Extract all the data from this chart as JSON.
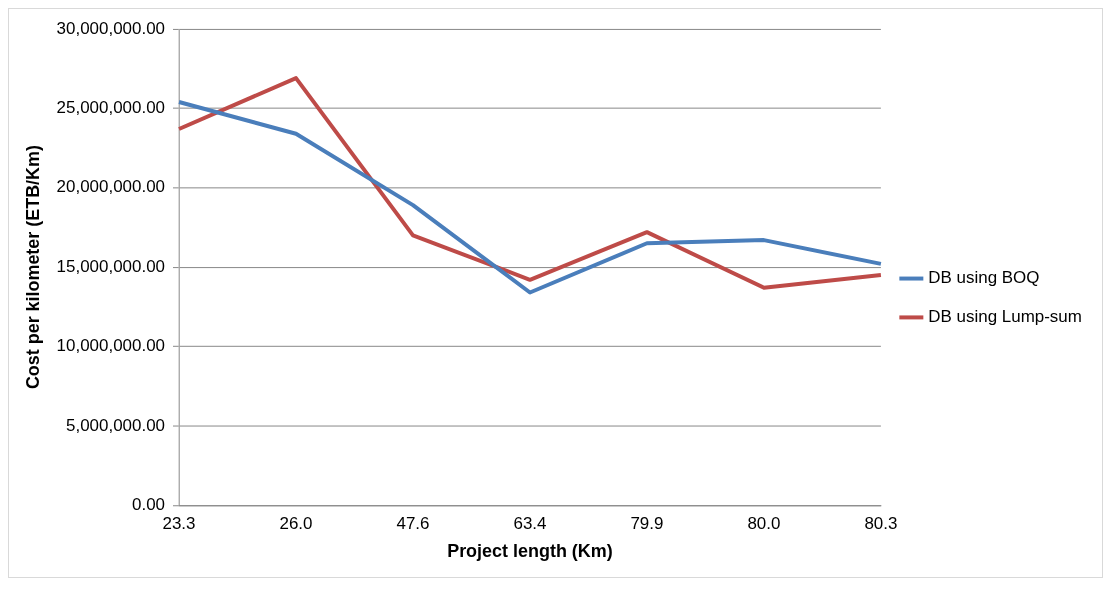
{
  "chart_data": {
    "type": "line",
    "xlabel": "Project length (Km)",
    "ylabel": "Cost per kilometer (ETB/Km)",
    "categories": [
      "23.3",
      "26.0",
      "47.6",
      "63.4",
      "79.9",
      "80.0",
      "80.3"
    ],
    "series": [
      {
        "name": "DB using BOQ",
        "color": "#4a7ebb",
        "values": [
          25400000,
          23400000,
          18900000,
          13400000,
          16500000,
          16700000,
          15200000
        ]
      },
      {
        "name": "DB using Lump-sum",
        "color": "#be4b48",
        "values": [
          23700000,
          26900000,
          17000000,
          14200000,
          17200000,
          13700000,
          14500000
        ]
      }
    ],
    "ylim": [
      0,
      30000000
    ],
    "yticks": [
      {
        "value": 0,
        "label": "0.00"
      },
      {
        "value": 5000000,
        "label": "5,000,000.00"
      },
      {
        "value": 10000000,
        "label": "10,000,000.00"
      },
      {
        "value": 15000000,
        "label": "15,000,000.00"
      },
      {
        "value": 20000000,
        "label": "20,000,000.00"
      },
      {
        "value": 25000000,
        "label": "25,000,000.00"
      },
      {
        "value": 30000000,
        "label": "30,000,000.00"
      }
    ],
    "grid": "y",
    "legend": "right",
    "marker": "none",
    "line_style": "solid"
  }
}
